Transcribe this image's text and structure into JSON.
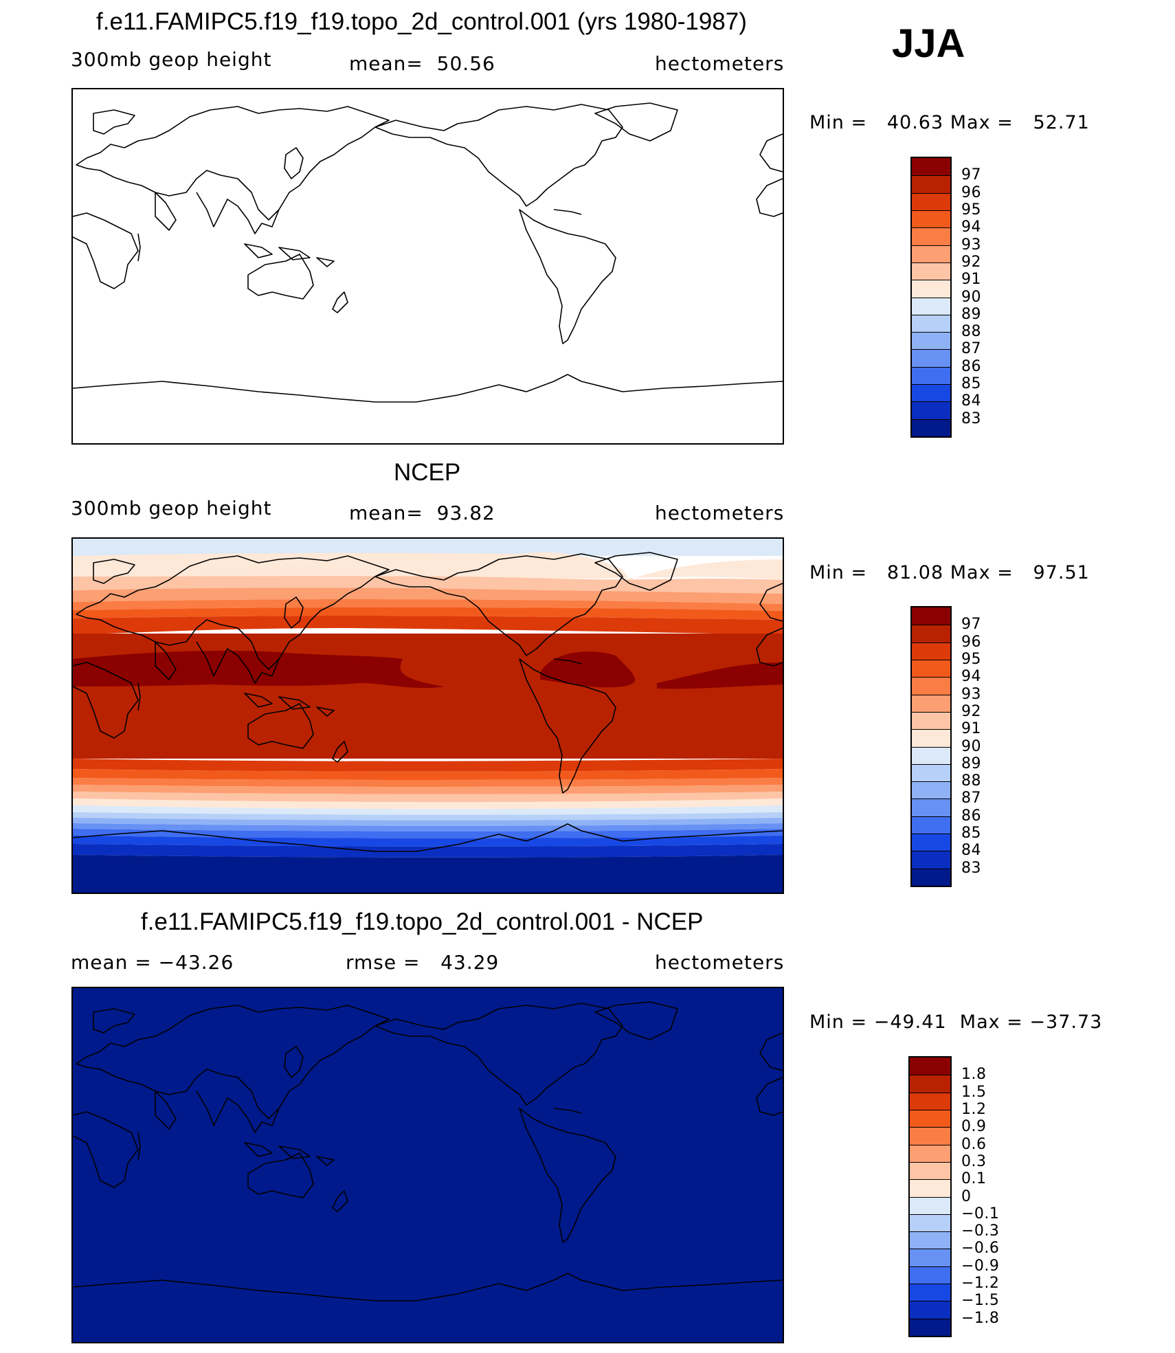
{
  "season": "JJA",
  "units_label": "hectometers",
  "panels": [
    {
      "title": "f.e11.FAMIPC5.f19_f19.topo_2d_control.001 (yrs 1980-1987)",
      "left": "300mb geop height",
      "center": "mean=  50.56",
      "right": "hectometers",
      "minmax": "Min =   40.63 Max =   52.71",
      "colorbar": [
        "97",
        "96",
        "95",
        "94",
        "93",
        "92",
        "91",
        "90",
        "89",
        "88",
        "87",
        "86",
        "85",
        "84",
        "83"
      ]
    },
    {
      "title": "NCEP",
      "left": "300mb geop height",
      "center": "mean=  93.82",
      "right": "hectometers",
      "minmax": "Min =   81.08 Max =   97.51",
      "colorbar": [
        "97",
        "96",
        "95",
        "94",
        "93",
        "92",
        "91",
        "90",
        "89",
        "88",
        "87",
        "86",
        "85",
        "84",
        "83"
      ]
    },
    {
      "title": "f.e11.FAMIPC5.f19_f19.topo_2d_control.001 - NCEP",
      "left": "mean = −43.26",
      "center": "rmse =   43.29",
      "right": "hectometers",
      "minmax": "Min = −49.41  Max = −37.73",
      "colorbar": [
        "1.8",
        "1.5",
        "1.2",
        "0.9",
        "0.6",
        "0.3",
        "0.1",
        "0",
        "−0.1",
        "−0.3",
        "−0.6",
        "−0.9",
        "−1.2",
        "−1.5",
        "−1.8"
      ]
    }
  ],
  "colors": {
    "scale": [
      "#8b0000",
      "#b82200",
      "#dd3a0a",
      "#f25a1c",
      "#fa7d45",
      "#fc9f72",
      "#fdc4a6",
      "#fee8d8",
      "#dbe9f8",
      "#b6d0f7",
      "#8fb2f6",
      "#6891f4",
      "#3f6ef0",
      "#1848e4",
      "#0a2ec0",
      "#001a8c"
    ],
    "diff_fill": "#001a8c",
    "model_fill": "#ffffff",
    "coast": "#000000"
  }
}
